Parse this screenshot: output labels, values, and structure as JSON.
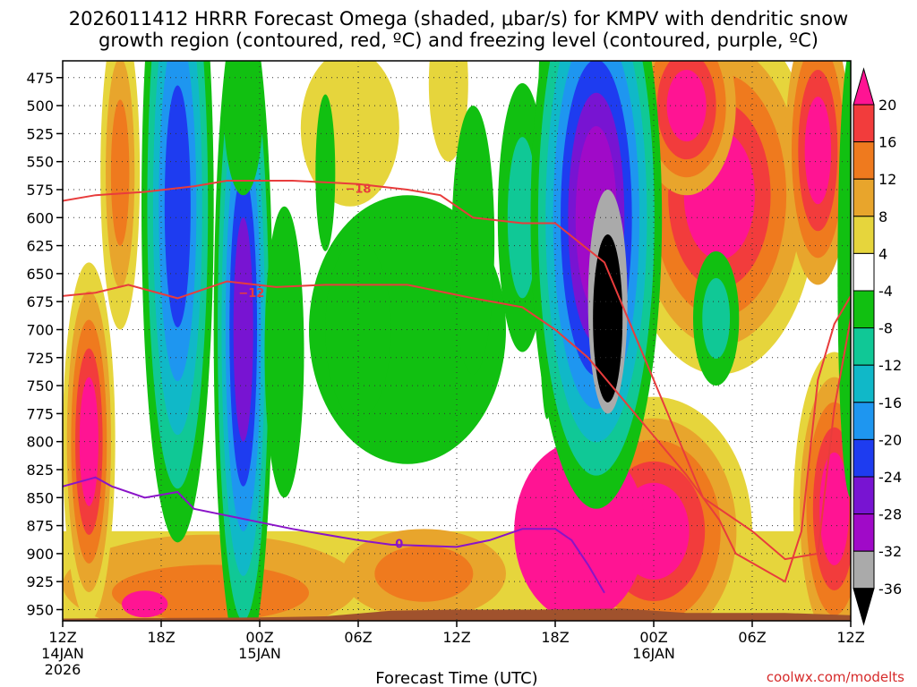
{
  "chart_data": {
    "type": "time-height cross section (filled contour)",
    "title_line1": "2026011412 HRRR Forecast Omega (shaded, μbar/s) for KMPV with dendritic snow",
    "title_line2": "growth region (contoured, red, ºC) and freezing level (contoured, purple, ºC)",
    "xlabel": "Forecast Time (UTC)",
    "credit": "coolwx.com/modelts",
    "x_range_hours": [
      0,
      48
    ],
    "y_range_mb": [
      460,
      960
    ],
    "pressure_levels": [
      475,
      500,
      525,
      550,
      575,
      600,
      625,
      650,
      675,
      700,
      725,
      750,
      775,
      800,
      825,
      850,
      875,
      900,
      925,
      950
    ],
    "x_ticks": [
      {
        "hour": 0,
        "label": "12Z",
        "sub1": "14JAN",
        "sub2": "2026"
      },
      {
        "hour": 6,
        "label": "18Z",
        "sub1": "",
        "sub2": ""
      },
      {
        "hour": 12,
        "label": "00Z",
        "sub1": "15JAN",
        "sub2": ""
      },
      {
        "hour": 18,
        "label": "06Z",
        "sub1": "",
        "sub2": ""
      },
      {
        "hour": 24,
        "label": "12Z",
        "sub1": "",
        "sub2": ""
      },
      {
        "hour": 30,
        "label": "18Z",
        "sub1": "",
        "sub2": ""
      },
      {
        "hour": 36,
        "label": "00Z",
        "sub1": "16JAN",
        "sub2": ""
      },
      {
        "hour": 42,
        "label": "06Z",
        "sub1": "",
        "sub2": ""
      },
      {
        "hour": 48,
        "label": "12Z",
        "sub1": "",
        "sub2": ""
      }
    ],
    "colorbar": {
      "units": "μbar/s",
      "label_values": [
        20,
        16,
        12,
        8,
        4,
        -4,
        -8,
        -12,
        -16,
        -20,
        -24,
        -28,
        -32,
        -36
      ],
      "bins": [
        {
          "range": "> 20",
          "color": "#ff1493"
        },
        {
          "range": "16 to 20",
          "color": "#f23c3c"
        },
        {
          "range": "12 to 16",
          "color": "#ef7a1e"
        },
        {
          "range": "8 to 12",
          "color": "#e8a52c"
        },
        {
          "range": "4 to 8",
          "color": "#e6d53c"
        },
        {
          "range": "-4 to 4",
          "color": "#ffffff"
        },
        {
          "range": "-8 to -4",
          "color": "#11c011"
        },
        {
          "range": "-12 to -8",
          "color": "#10c896"
        },
        {
          "range": "-16 to -12",
          "color": "#10b8c8"
        },
        {
          "range": "-20 to -16",
          "color": "#1e96f0"
        },
        {
          "range": "-24 to -20",
          "color": "#1e3cf0"
        },
        {
          "range": "-28 to -24",
          "color": "#7814d2"
        },
        {
          "range": "-32 to -28",
          "color": "#a00ac8"
        },
        {
          "range": "-36 to -32",
          "color": "#aaaaaa"
        },
        {
          "range": "< -36",
          "color": "#000000"
        }
      ]
    },
    "isotherms": [
      {
        "name": "-18 °C",
        "label": "−18",
        "color": "#e83c3c",
        "points": [
          [
            0,
            585
          ],
          [
            2,
            580
          ],
          [
            5,
            577
          ],
          [
            8,
            572
          ],
          [
            10,
            567
          ],
          [
            14,
            567
          ],
          [
            18,
            570
          ],
          [
            21,
            575
          ],
          [
            23,
            580
          ],
          [
            25,
            600
          ],
          [
            28,
            605
          ],
          [
            30,
            605
          ],
          [
            33,
            640
          ],
          [
            36,
            745
          ],
          [
            39,
            850
          ],
          [
            42,
            880
          ],
          [
            44,
            905
          ],
          [
            46,
            900
          ],
          [
            47,
            770
          ],
          [
            48,
            690
          ]
        ],
        "label_at": [
          18,
          574
        ]
      },
      {
        "name": "-12 °C",
        "label": "−12",
        "color": "#e83c3c",
        "points": [
          [
            0,
            670
          ],
          [
            2,
            667
          ],
          [
            4,
            660
          ],
          [
            7,
            672
          ],
          [
            10,
            657
          ],
          [
            13,
            662
          ],
          [
            16,
            660
          ],
          [
            18,
            660
          ],
          [
            21,
            660
          ],
          [
            25,
            672
          ],
          [
            28,
            680
          ],
          [
            30,
            700
          ],
          [
            32,
            725
          ],
          [
            34,
            760
          ],
          [
            36,
            795
          ],
          [
            38,
            830
          ],
          [
            40,
            870
          ],
          [
            41,
            900
          ],
          [
            44,
            925
          ],
          [
            45,
            880
          ],
          [
            46,
            745
          ],
          [
            47,
            695
          ],
          [
            48,
            670
          ]
        ],
        "label_at": [
          11.5,
          667
        ]
      },
      {
        "name": "0 °C freezing level",
        "label": "0",
        "color": "#8a14c8",
        "points": [
          [
            0,
            840
          ],
          [
            2,
            832
          ],
          [
            3,
            840
          ],
          [
            5,
            850
          ],
          [
            7,
            845
          ],
          [
            8,
            860
          ],
          [
            10,
            866
          ],
          [
            12,
            872
          ],
          [
            14,
            878
          ],
          [
            16,
            883
          ],
          [
            18,
            888
          ],
          [
            20,
            892
          ],
          [
            22,
            893
          ],
          [
            24,
            894
          ],
          [
            26,
            888
          ],
          [
            28,
            878
          ],
          [
            30,
            878
          ],
          [
            31,
            888
          ],
          [
            32,
            910
          ],
          [
            33,
            935
          ]
        ],
        "label_at": [
          20.5,
          891
        ]
      }
    ],
    "terrain": {
      "color": "#a0522d",
      "points": [
        [
          0,
          958
        ],
        [
          12,
          957
        ],
        [
          16,
          956
        ],
        [
          20,
          951
        ],
        [
          24,
          950
        ],
        [
          29,
          950
        ],
        [
          34,
          949
        ],
        [
          38,
          953
        ],
        [
          44,
          953
        ],
        [
          48,
          955
        ]
      ]
    }
  }
}
